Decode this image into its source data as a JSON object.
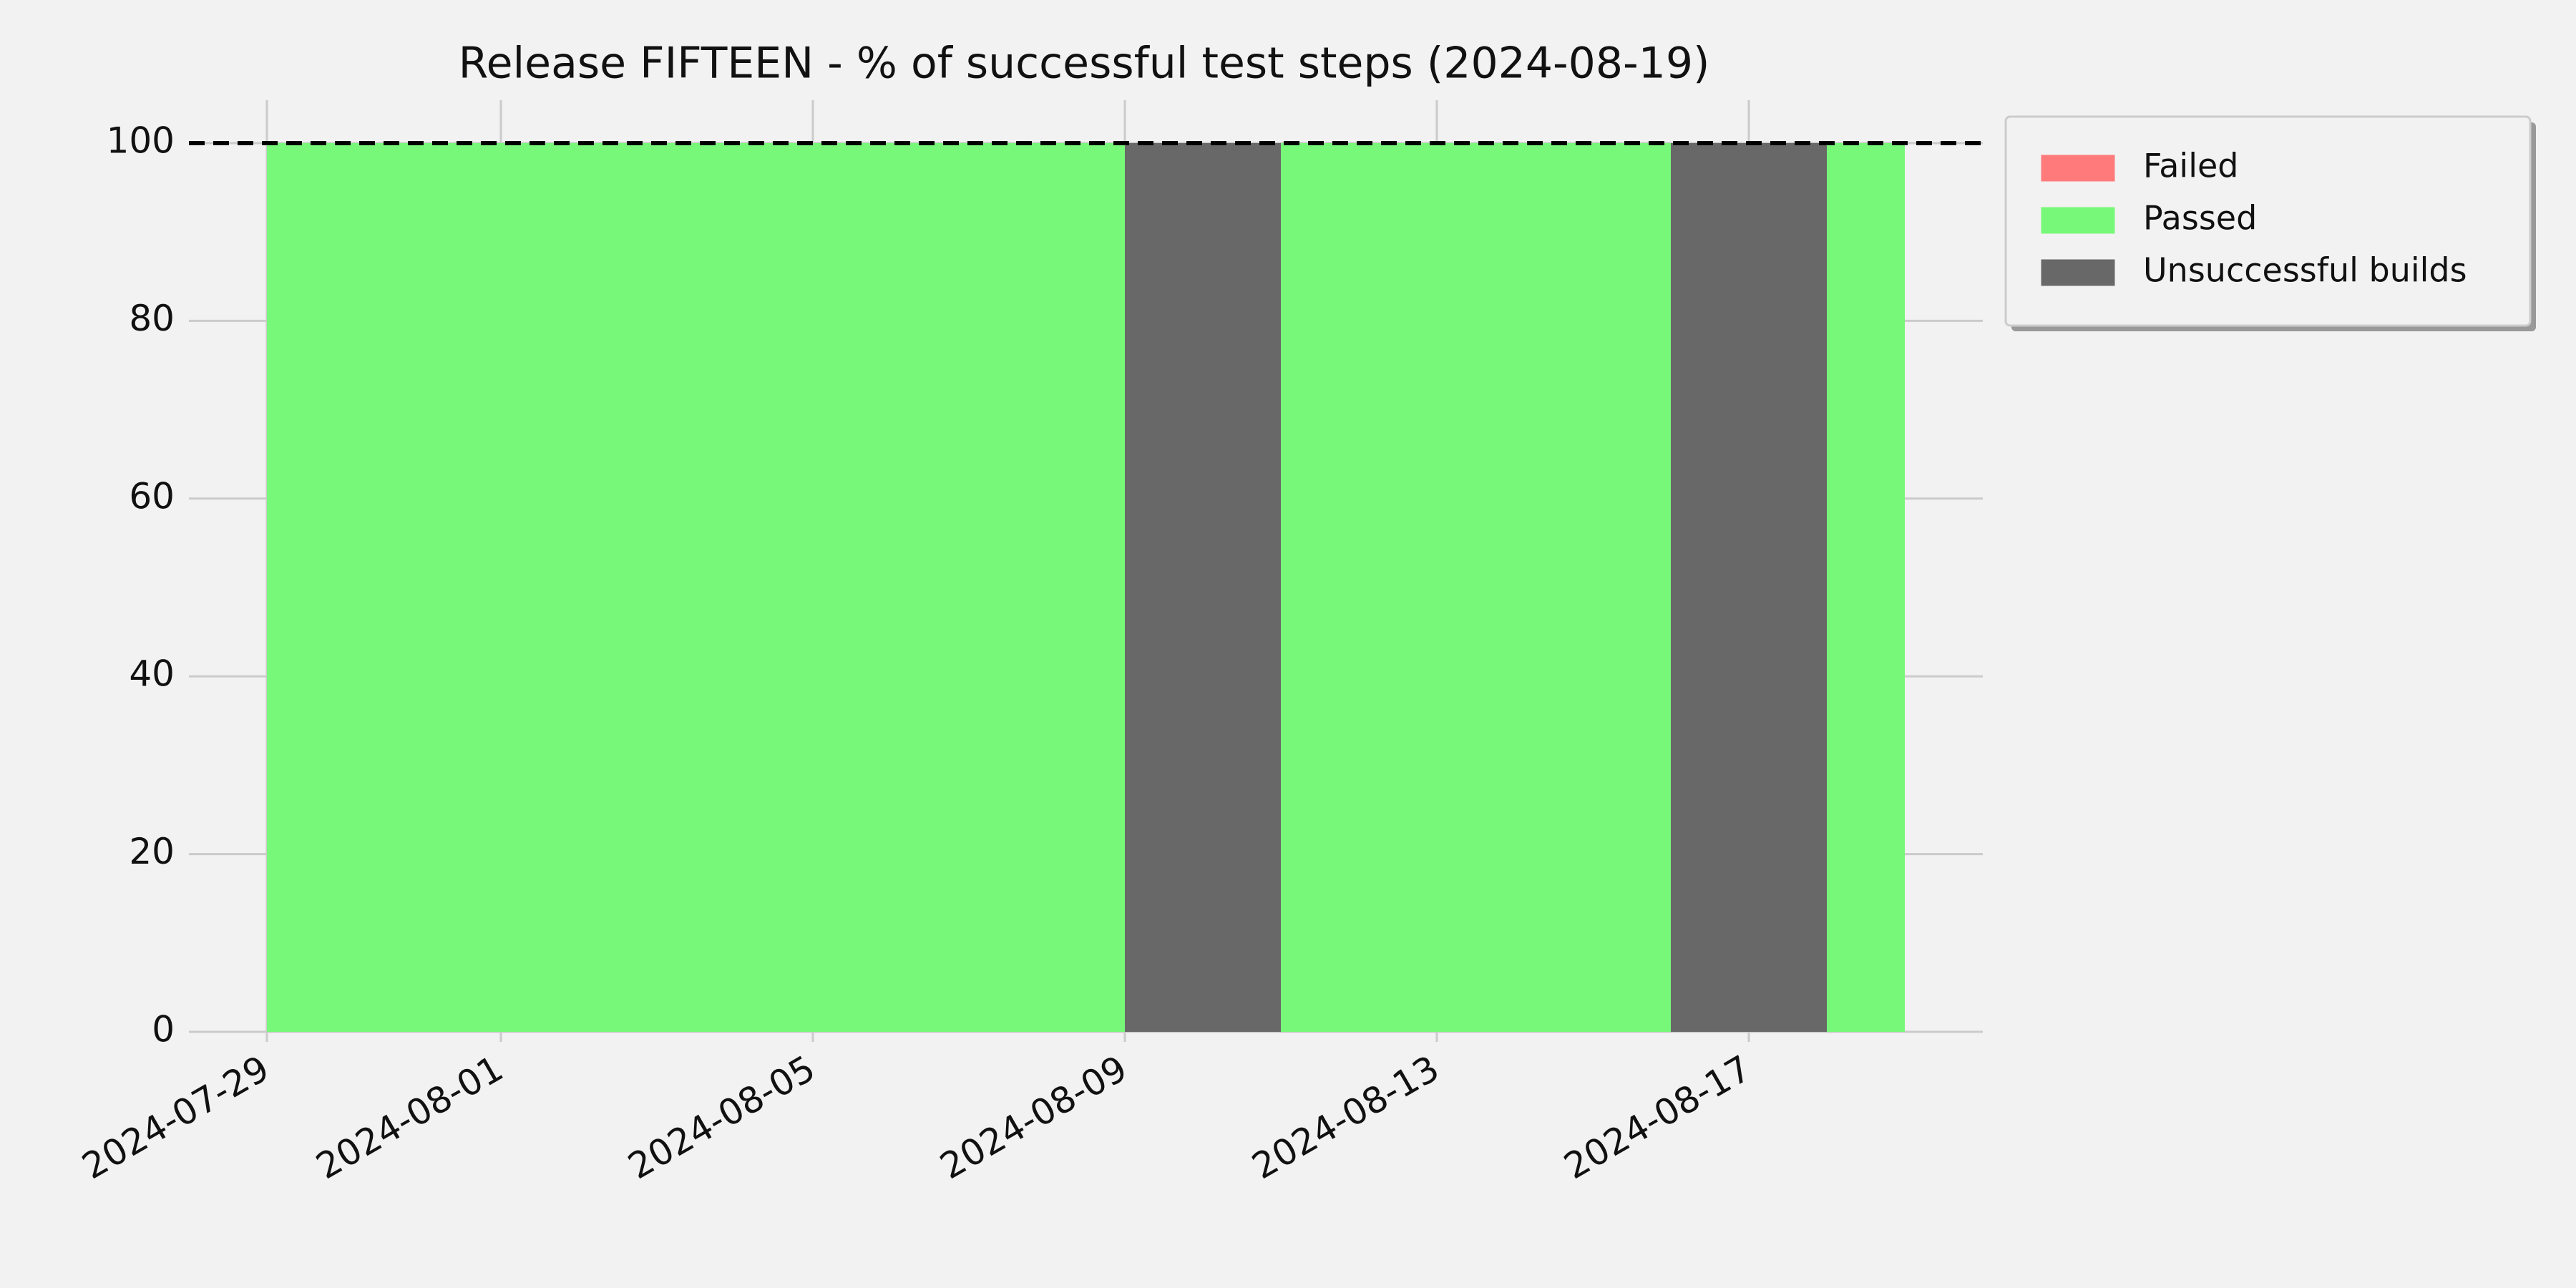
{
  "chart_data": {
    "type": "bar",
    "title": "Release FIFTEEN - % of successful test steps (2024-08-19)",
    "x": [
      "2024-07-29",
      "2024-07-30",
      "2024-07-31",
      "2024-08-01",
      "2024-08-02",
      "2024-08-03",
      "2024-08-04",
      "2024-08-05",
      "2024-08-06",
      "2024-08-07",
      "2024-08-08",
      "2024-08-09",
      "2024-08-10",
      "2024-08-11",
      "2024-08-12",
      "2024-08-13",
      "2024-08-14",
      "2024-08-15",
      "2024-08-16",
      "2024-08-17",
      "2024-08-18"
    ],
    "series": [
      {
        "name": "Failed",
        "color": "#ff7b7b",
        "values": [
          0,
          0,
          0,
          0,
          0,
          0,
          0,
          0,
          0,
          0,
          0,
          0,
          0,
          0,
          0,
          0,
          0,
          0,
          0,
          0,
          0
        ]
      },
      {
        "name": "Passed",
        "color": "#78f878",
        "values": [
          100,
          100,
          100,
          100,
          100,
          100,
          100,
          100,
          100,
          100,
          100,
          0,
          0,
          100,
          100,
          100,
          100,
          100,
          0,
          0,
          100
        ]
      },
      {
        "name": "Unsuccessful builds",
        "color": "#686868",
        "values": [
          0,
          0,
          0,
          0,
          0,
          0,
          0,
          0,
          0,
          0,
          0,
          100,
          100,
          0,
          0,
          0,
          0,
          0,
          100,
          100,
          0
        ]
      }
    ],
    "stacked": true,
    "reference_line": 100,
    "xlim": [
      "2024-07-28",
      "2024-08-20"
    ],
    "xticks": [
      "2024-07-29",
      "2024-08-01",
      "2024-08-05",
      "2024-08-09",
      "2024-08-13",
      "2024-08-17"
    ],
    "ylim": [
      0,
      100
    ],
    "yticks": [
      0,
      20,
      40,
      60,
      80,
      100
    ],
    "grid": true,
    "legend": "outside upper right"
  }
}
